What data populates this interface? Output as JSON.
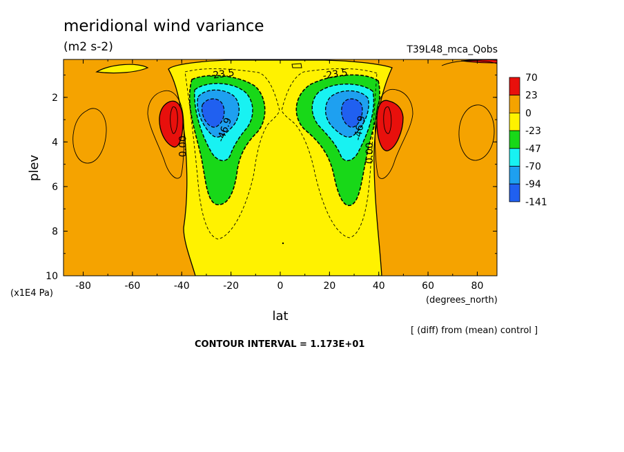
{
  "title": "meridional wind variance",
  "units": "(m2 s-2)",
  "run_label": "T39L48_mca_Qobs",
  "xlabel": "lat",
  "x_units": "(degrees_north)",
  "ylabel": "plev",
  "y_units": "(x1E4 Pa)",
  "footnote": "[ (diff) from (mean) control ]",
  "contour_interval": "CONTOUR INTERVAL = 1.173E+01",
  "colors": {
    "c70": "#e8100c",
    "c23": "#f5a300",
    "c0": "#fff200",
    "cm23": "#18d818",
    "cm47": "#18f2f2",
    "cm70": "#1ea0f0",
    "cm94": "#2060f0"
  },
  "chart_data": {
    "type": "heatmap",
    "x_ticks": [
      "-80",
      "-60",
      "-40",
      "-20",
      "0",
      "20",
      "40",
      "60",
      "80"
    ],
    "y_ticks": [
      "2",
      "4",
      "6",
      "8",
      "10"
    ],
    "xlim": [
      -88,
      88
    ],
    "ylim": [
      10,
      0.3
    ],
    "legend": {
      "labels": [
        "70",
        "23",
        "0",
        "-23",
        "-47",
        "-70",
        "-94",
        "-141"
      ],
      "colors": [
        "#e8100c",
        "#f5a300",
        "#fff200",
        "#18d818",
        "#18f2f2",
        "#1ea0f0",
        "#2060f0"
      ]
    },
    "contour_labels": [
      {
        "text": "-23.5",
        "lat": -23.5,
        "plev": 1.1,
        "angle": -8
      },
      {
        "text": "-46.9",
        "lat": -21.5,
        "plev": 3.5,
        "angle": -70
      },
      {
        "text": "0.00",
        "lat": -38.3,
        "plev": 4.2,
        "angle": -90
      },
      {
        "text": "-23.5",
        "lat": 22.5,
        "plev": 1.1,
        "angle": -8
      },
      {
        "text": "-46.9",
        "lat": 33.5,
        "plev": 3.4,
        "angle": -80
      },
      {
        "text": "0.00",
        "lat": 37.5,
        "plev": 4.5,
        "angle": -90
      }
    ]
  }
}
